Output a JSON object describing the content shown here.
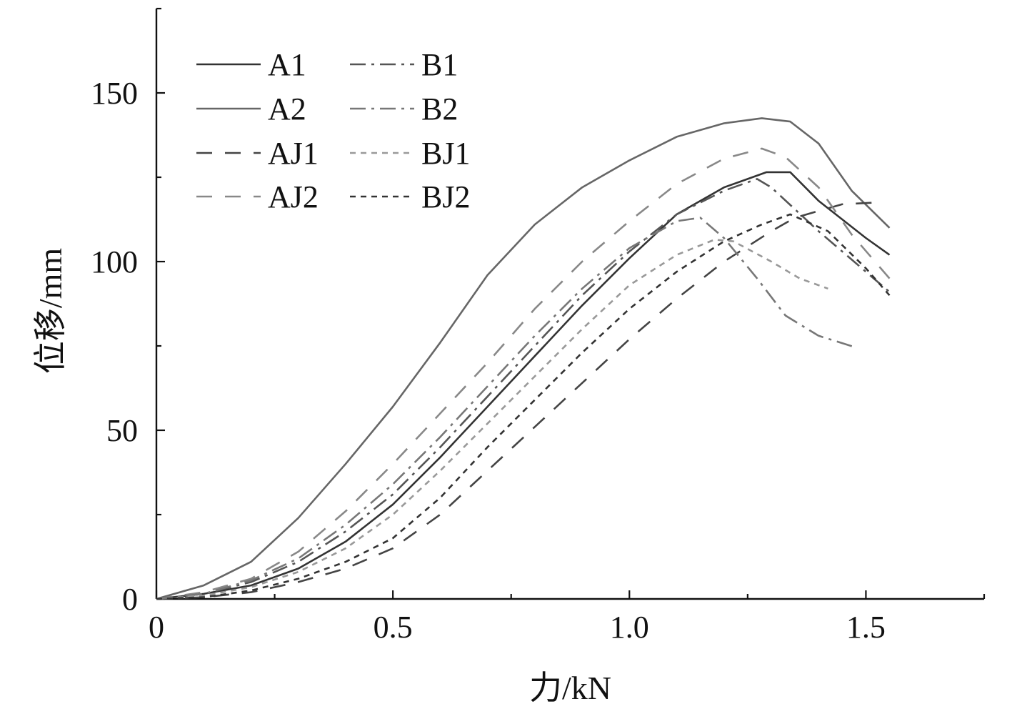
{
  "chart_data": {
    "type": "line",
    "title": "",
    "xlabel": "力/kN",
    "ylabel": "位移/mm",
    "xlim": [
      0,
      1.75
    ],
    "ylim": [
      0,
      175
    ],
    "x_ticks": [
      0,
      0.5,
      1.0,
      1.5
    ],
    "x_tick_labels": [
      "0",
      "0.5",
      "1.0",
      "1.5"
    ],
    "x_minor_ticks": [
      0.25,
      0.75,
      1.25
    ],
    "y_ticks": [
      0,
      50,
      100,
      150
    ],
    "y_tick_labels": [
      "0",
      "50",
      "100",
      "150"
    ],
    "y_minor_ticks": [
      25,
      75,
      125
    ],
    "grid": false,
    "legend_position": "top-left",
    "series": [
      {
        "name": "A1",
        "color": "#333333",
        "dash": "solid",
        "x": [
          0,
          0.1,
          0.2,
          0.3,
          0.4,
          0.5,
          0.6,
          0.7,
          0.8,
          0.9,
          1.0,
          1.1,
          1.2,
          1.25,
          1.29,
          1.34,
          1.4,
          1.5,
          1.55
        ],
        "y": [
          0,
          1.5,
          4,
          9,
          17,
          28,
          42,
          57,
          72,
          87,
          101,
          114,
          122,
          124.5,
          126.5,
          126.5,
          118,
          107,
          102
        ]
      },
      {
        "name": "A2",
        "color": "#666666",
        "dash": "solid",
        "x": [
          0,
          0.1,
          0.2,
          0.3,
          0.4,
          0.5,
          0.6,
          0.7,
          0.8,
          0.9,
          1.0,
          1.1,
          1.2,
          1.28,
          1.34,
          1.4,
          1.47,
          1.55
        ],
        "y": [
          0,
          4,
          11,
          24,
          40,
          57,
          76,
          96,
          111,
          122,
          130,
          137,
          141,
          142.5,
          141.5,
          135,
          121,
          110
        ]
      },
      {
        "name": "AJ1",
        "color": "#444444",
        "dash": "22 18",
        "x": [
          0,
          0.1,
          0.2,
          0.3,
          0.4,
          0.5,
          0.6,
          0.7,
          0.8,
          0.9,
          1.0,
          1.1,
          1.2,
          1.3,
          1.35,
          1.45,
          1.52
        ],
        "y": [
          0,
          0.5,
          2,
          5,
          9,
          15,
          25,
          38,
          51,
          64,
          77,
          89,
          100,
          109,
          113,
          117,
          117.5
        ]
      },
      {
        "name": "AJ2",
        "color": "#888888",
        "dash": "22 18",
        "x": [
          0,
          0.1,
          0.2,
          0.3,
          0.4,
          0.5,
          0.6,
          0.7,
          0.8,
          0.9,
          1.0,
          1.1,
          1.2,
          1.28,
          1.33,
          1.4,
          1.47,
          1.55
        ],
        "y": [
          0,
          2,
          6,
          14,
          26,
          40,
          55,
          70,
          86,
          100,
          112,
          123,
          130.5,
          133.5,
          131,
          122,
          108,
          95
        ]
      },
      {
        "name": "B1",
        "color": "#555555",
        "dash": "22 8 4 8",
        "x": [
          0,
          0.1,
          0.2,
          0.3,
          0.4,
          0.5,
          0.6,
          0.7,
          0.8,
          0.9,
          1.0,
          1.1,
          1.2,
          1.27,
          1.3,
          1.4,
          1.5,
          1.55
        ],
        "y": [
          0,
          1.5,
          5,
          11,
          20,
          31,
          45,
          60,
          75,
          90,
          103,
          114,
          121,
          124.5,
          122,
          109,
          97,
          91
        ]
      },
      {
        "name": "B2",
        "color": "#777777",
        "dash": "22 8 4 8",
        "x": [
          0,
          0.1,
          0.2,
          0.3,
          0.4,
          0.5,
          0.6,
          0.7,
          0.8,
          0.9,
          1.0,
          1.1,
          1.15,
          1.2,
          1.27,
          1.33,
          1.4,
          1.48
        ],
        "y": [
          0,
          1.5,
          5.5,
          12,
          22,
          34,
          48,
          63,
          78,
          92,
          104,
          112,
          113,
          107,
          95,
          84,
          78,
          74.5
        ]
      },
      {
        "name": "BJ1",
        "color": "#999999",
        "dash": "8 7",
        "x": [
          0,
          0.1,
          0.2,
          0.3,
          0.4,
          0.5,
          0.6,
          0.7,
          0.8,
          0.9,
          1.0,
          1.1,
          1.18,
          1.22,
          1.3,
          1.36,
          1.42
        ],
        "y": [
          0,
          1,
          3.5,
          8,
          15,
          25,
          38,
          52,
          66,
          80,
          93,
          102,
          106.5,
          106,
          100,
          95,
          92
        ]
      },
      {
        "name": "BJ2",
        "color": "#333333",
        "dash": "8 7",
        "x": [
          0,
          0.1,
          0.2,
          0.3,
          0.4,
          0.5,
          0.6,
          0.7,
          0.8,
          0.9,
          1.0,
          1.1,
          1.2,
          1.28,
          1.34,
          1.42,
          1.5,
          1.55
        ],
        "y": [
          0,
          0.5,
          2.5,
          6,
          11,
          18,
          30,
          45,
          59,
          73,
          86,
          97,
          106,
          111,
          114,
          109,
          98,
          90
        ]
      }
    ]
  }
}
